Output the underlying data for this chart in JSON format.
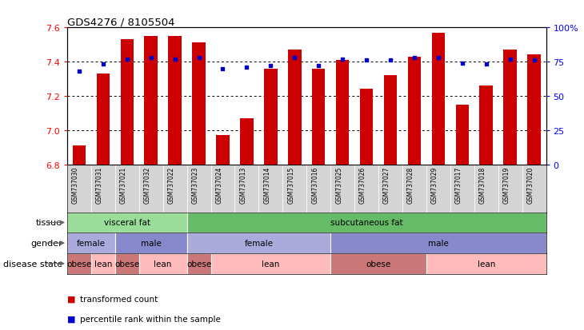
{
  "title": "GDS4276 / 8105504",
  "samples": [
    "GSM737030",
    "GSM737031",
    "GSM737021",
    "GSM737032",
    "GSM737022",
    "GSM737023",
    "GSM737024",
    "GSM737013",
    "GSM737014",
    "GSM737015",
    "GSM737016",
    "GSM737025",
    "GSM737026",
    "GSM737027",
    "GSM737028",
    "GSM737029",
    "GSM737017",
    "GSM737018",
    "GSM737019",
    "GSM737020"
  ],
  "bar_values": [
    6.91,
    7.33,
    7.53,
    7.55,
    7.55,
    7.51,
    6.97,
    7.07,
    7.36,
    7.47,
    7.36,
    7.41,
    7.24,
    7.32,
    7.43,
    7.57,
    7.15,
    7.26,
    7.47,
    7.44
  ],
  "dot_values": [
    68,
    73,
    77,
    78,
    77,
    78,
    70,
    71,
    72,
    78,
    72,
    77,
    76,
    76,
    78,
    78,
    74,
    73,
    77,
    76
  ],
  "ylim_left": [
    6.8,
    7.6
  ],
  "ylim_right": [
    0,
    100
  ],
  "yticks_left": [
    6.8,
    7.0,
    7.2,
    7.4,
    7.6
  ],
  "yticks_right": [
    0,
    25,
    50,
    75,
    100
  ],
  "ytick_labels_right": [
    "0",
    "25",
    "50",
    "75",
    "100%"
  ],
  "bar_color": "#cc0000",
  "dot_color": "#0000cc",
  "bar_bottom": 6.8,
  "xticklabel_bg": "#d0d0d0",
  "tissue_groups": [
    {
      "label": "visceral fat",
      "start": 0,
      "end": 5,
      "color": "#99dd99"
    },
    {
      "label": "subcutaneous fat",
      "start": 5,
      "end": 20,
      "color": "#66bb66"
    }
  ],
  "gender_groups": [
    {
      "label": "female",
      "start": 0,
      "end": 2,
      "color": "#aaaadd"
    },
    {
      "label": "male",
      "start": 2,
      "end": 5,
      "color": "#8888cc"
    },
    {
      "label": "female",
      "start": 5,
      "end": 11,
      "color": "#aaaadd"
    },
    {
      "label": "male",
      "start": 11,
      "end": 20,
      "color": "#8888cc"
    }
  ],
  "disease_groups": [
    {
      "label": "obese",
      "start": 0,
      "end": 1,
      "color": "#cc7777"
    },
    {
      "label": "lean",
      "start": 1,
      "end": 2,
      "color": "#ffbbbb"
    },
    {
      "label": "obese",
      "start": 2,
      "end": 3,
      "color": "#cc7777"
    },
    {
      "label": "lean",
      "start": 3,
      "end": 5,
      "color": "#ffbbbb"
    },
    {
      "label": "obese",
      "start": 5,
      "end": 6,
      "color": "#cc7777"
    },
    {
      "label": "lean",
      "start": 6,
      "end": 11,
      "color": "#ffbbbb"
    },
    {
      "label": "obese",
      "start": 11,
      "end": 15,
      "color": "#cc7777"
    },
    {
      "label": "lean",
      "start": 15,
      "end": 20,
      "color": "#ffbbbb"
    }
  ],
  "row_labels": [
    "tissue",
    "gender",
    "disease state"
  ],
  "legend_items": [
    {
      "label": "transformed count",
      "color": "#cc0000"
    },
    {
      "label": "percentile rank within the sample",
      "color": "#0000cc"
    }
  ]
}
